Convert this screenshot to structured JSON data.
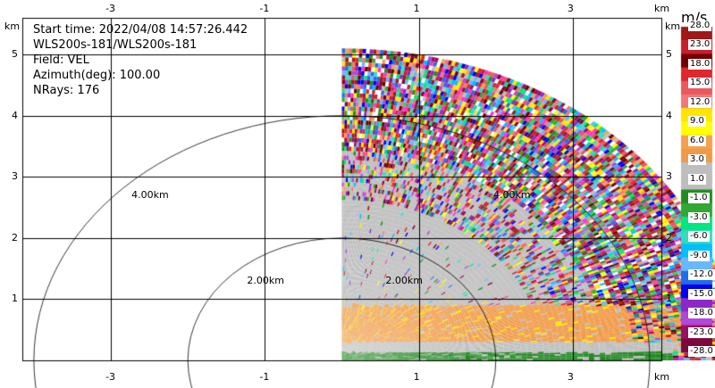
{
  "chart_data": {
    "type": "heatmap",
    "field": "VEL",
    "unit": "m/s",
    "x_unit_label": "km",
    "y_unit_label": "km",
    "xlim": [
      -4.15,
      4.15
    ],
    "ylim": [
      0,
      5.6
    ],
    "x_ticks": [
      -3,
      -1,
      1,
      3
    ],
    "y_ticks": [
      1,
      2,
      3,
      4,
      5
    ],
    "grid": true,
    "info_lines": [
      "Start time: 2022/04/08 14:57:26.442",
      "WLS200s-181/WLS200s-181",
      "Field: VEL",
      "Azimuth(deg): 100.00",
      "NRays: 176"
    ],
    "range_rings": [
      {
        "radius_km": 2.0,
        "label": "2.00km"
      },
      {
        "radius_km": 4.0,
        "label": "4.00km"
      }
    ],
    "ring_label_points": [
      {
        "x": -2.5,
        "y": 2.7,
        "label": "4.00km"
      },
      {
        "x": -1.0,
        "y": 1.3,
        "label": "2.00km"
      },
      {
        "x": 0.8,
        "y": 1.3,
        "label": "2.00km"
      },
      {
        "x": 2.2,
        "y": 2.7,
        "label": "4.00km"
      }
    ],
    "colorbar": {
      "ticks": [
        "28.0",
        "23.0",
        "18.0",
        "15.0",
        "12.0",
        "9.0",
        "6.0",
        "3.0",
        "1.0",
        "-1.0",
        "-3.0",
        "-6.0",
        "-9.0",
        "-12.0",
        "-15.0",
        "-18.0",
        "-23.0",
        "-28.0"
      ],
      "colors": [
        "#a01818",
        "#c81f2d",
        "#6e0000",
        "#e0262e",
        "#e8585c",
        "#f07878",
        "#ffe600",
        "#ffff00",
        "#f5a050",
        "#f09a48",
        "#bebebe",
        "#bdbdbd",
        "#228b22",
        "#32a832",
        "#00e680",
        "#33ddbb",
        "#00bfff",
        "#66b8ff",
        "#1e6ee8",
        "#0000ee",
        "#8c28c8",
        "#b048d8",
        "#9b1060",
        "#7a0a3a"
      ]
    },
    "data_sector": {
      "azimuth_start_deg": 0,
      "azimuth_end_deg": 90,
      "max_range_km": 5.1
    }
  }
}
